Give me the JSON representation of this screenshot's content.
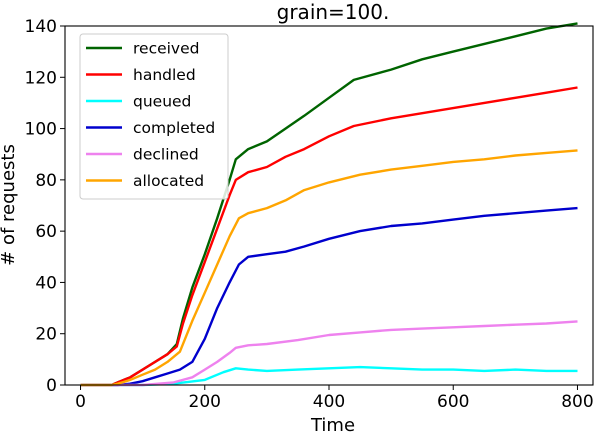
{
  "chart_data": {
    "type": "line",
    "title": "grain=100.",
    "xlabel": "Time",
    "ylabel": "# of requests",
    "xlim": [
      -25,
      825
    ],
    "ylim": [
      0,
      140
    ],
    "xticks": [
      0,
      200,
      400,
      600,
      800
    ],
    "yticks": [
      0,
      20,
      40,
      60,
      80,
      100,
      120,
      140
    ],
    "grid": false,
    "legend_position": "upper-left",
    "series": [
      {
        "name": "received",
        "color": "#006400",
        "x": [
          0,
          50,
          60,
          80,
          100,
          120,
          140,
          155,
          165,
          180,
          200,
          220,
          240,
          250,
          270,
          300,
          330,
          360,
          400,
          440,
          500,
          550,
          600,
          650,
          700,
          750,
          800
        ],
        "y": [
          0,
          0,
          1,
          3,
          6,
          9,
          12,
          16,
          26,
          38,
          51,
          65,
          80,
          88,
          92,
          95,
          100,
          105,
          112,
          119,
          123,
          127,
          130,
          133,
          136,
          139,
          141
        ]
      },
      {
        "name": "handled",
        "color": "#ff0000",
        "x": [
          0,
          50,
          60,
          80,
          100,
          120,
          140,
          155,
          165,
          180,
          200,
          220,
          240,
          250,
          270,
          300,
          330,
          360,
          400,
          440,
          500,
          550,
          600,
          650,
          700,
          750,
          800
        ],
        "y": [
          0,
          0,
          1,
          3,
          6,
          9,
          12,
          15,
          24,
          35,
          48,
          61,
          74,
          80,
          83,
          85,
          89,
          92,
          97,
          101,
          104,
          106,
          108,
          110,
          112,
          114,
          116
        ]
      },
      {
        "name": "queued",
        "color": "#00ffff",
        "x": [
          0,
          100,
          150,
          200,
          230,
          250,
          270,
          300,
          350,
          400,
          450,
          500,
          550,
          600,
          650,
          700,
          750,
          800
        ],
        "y": [
          0,
          0,
          0.5,
          2,
          5,
          6.5,
          6,
          5.5,
          6,
          6.5,
          7,
          6.5,
          6,
          6,
          5.5,
          6,
          5.5,
          5.5
        ]
      },
      {
        "name": "completed",
        "color": "#0000cd",
        "x": [
          0,
          60,
          80,
          100,
          120,
          140,
          160,
          180,
          200,
          220,
          240,
          255,
          270,
          300,
          330,
          360,
          400,
          450,
          500,
          550,
          600,
          650,
          700,
          750,
          800
        ],
        "y": [
          0,
          0,
          0.5,
          1.5,
          3,
          4.5,
          6,
          9,
          18,
          30,
          40,
          47,
          50,
          51,
          52,
          54,
          57,
          60,
          62,
          63,
          64.5,
          66,
          67,
          68,
          69
        ]
      },
      {
        "name": "declined",
        "color": "#ee82ee",
        "x": [
          0,
          100,
          150,
          180,
          200,
          220,
          240,
          250,
          270,
          300,
          350,
          400,
          450,
          500,
          550,
          600,
          650,
          700,
          750,
          800
        ],
        "y": [
          0,
          0,
          1,
          3,
          6,
          9,
          12.5,
          14.5,
          15.5,
          16,
          17.5,
          19.5,
          20.5,
          21.5,
          22,
          22.5,
          23,
          23.5,
          24,
          24.8
        ]
      },
      {
        "name": "allocated",
        "color": "#ffa500",
        "x": [
          0,
          50,
          60,
          80,
          100,
          120,
          140,
          160,
          180,
          200,
          220,
          240,
          255,
          270,
          300,
          330,
          360,
          400,
          450,
          500,
          550,
          600,
          650,
          700,
          750,
          800
        ],
        "y": [
          0,
          0,
          0.5,
          2,
          4,
          6,
          9,
          13,
          25,
          36,
          47,
          58,
          65,
          67,
          69,
          72,
          76,
          79,
          82,
          84,
          85.5,
          87,
          88,
          89.5,
          90.5,
          91.5
        ]
      }
    ]
  }
}
